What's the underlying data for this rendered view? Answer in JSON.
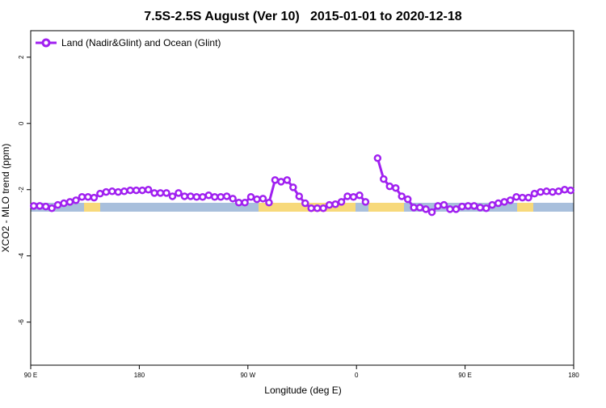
{
  "chart_data": {
    "type": "line",
    "title": "7.5S-2.5S August (Ver 10)   2015-01-01 to 2020-12-18",
    "xlabel": "Longitude (deg E)",
    "ylabel": "XCO2 - MLO trend (ppm)",
    "xlim": [
      90,
      540
    ],
    "ylim": [
      -7.3,
      2.8
    ],
    "xticks": [
      {
        "value": 90,
        "label": "90 E"
      },
      180,
      {
        "value": 270,
        "label": "90 W"
      },
      {
        "value": 360,
        "label": "0"
      },
      {
        "value": 450,
        "label": "90 E"
      },
      {
        "value": 540,
        "label": "180"
      }
    ],
    "yticks": [
      -6,
      -4,
      -2,
      0,
      2
    ],
    "legend": "top-left",
    "x": [
      92.5,
      97.5,
      102.5,
      107.5,
      112.5,
      117.5,
      122.5,
      127.5,
      132.5,
      137.5,
      142.5,
      147.5,
      152.5,
      157.5,
      162.5,
      167.5,
      172.5,
      177.5,
      182.5,
      187.5,
      192.5,
      197.5,
      202.5,
      207.5,
      212.5,
      217.5,
      222.5,
      227.5,
      232.5,
      237.5,
      242.5,
      247.5,
      252.5,
      257.5,
      262.5,
      267.5,
      272.5,
      277.5,
      282.5,
      287.5,
      292.5,
      297.5,
      302.5,
      307.5,
      312.5,
      317.5,
      322.5,
      327.5,
      332.5,
      337.5,
      342.5,
      347.5,
      352.5,
      357.5,
      362.5,
      367.5,
      372.5,
      377.5,
      382.5,
      387.5,
      392.5,
      397.5,
      402.5,
      407.5,
      412.5,
      417.5,
      422.5,
      427.5,
      432.5,
      437.5,
      442.5,
      447.5,
      452.5,
      457.5,
      462.5,
      467.5,
      472.5,
      477.5,
      482.5,
      487.5,
      492.5,
      497.5,
      502.5,
      507.5,
      512.5,
      517.5,
      522.5,
      527.5,
      532.5,
      537.5
    ],
    "series": [
      {
        "name": "Land (Nadir&Glint) and Ocean (Glint)",
        "color": "#a020f0",
        "values": [
          -2.49,
          -2.49,
          -2.51,
          -2.56,
          -2.46,
          -2.41,
          -2.37,
          -2.32,
          -2.22,
          -2.22,
          -2.24,
          -2.12,
          -2.07,
          -2.05,
          -2.07,
          -2.05,
          -2.02,
          -2.02,
          -2.02,
          -2.0,
          -2.1,
          -2.1,
          -2.1,
          -2.2,
          -2.1,
          -2.2,
          -2.2,
          -2.22,
          -2.22,
          -2.17,
          -2.22,
          -2.22,
          -2.2,
          -2.27,
          -2.39,
          -2.39,
          -2.22,
          -2.29,
          -2.27,
          -2.39,
          -1.71,
          -1.76,
          -1.71,
          -1.93,
          -2.2,
          -2.41,
          -2.56,
          -2.56,
          -2.56,
          -2.46,
          -2.44,
          -2.37,
          -2.2,
          -2.22,
          -2.17,
          -2.37,
          null,
          -1.05,
          -1.68,
          -1.9,
          -1.95,
          -2.2,
          -2.29,
          -2.54,
          -2.54,
          -2.59,
          -2.68,
          -2.49,
          -2.46,
          -2.59,
          -2.59,
          -2.51,
          -2.49,
          -2.49,
          -2.54,
          -2.56,
          -2.46,
          -2.41,
          -2.37,
          -2.32,
          -2.22,
          -2.24,
          -2.24,
          -2.12,
          -2.07,
          -2.05,
          -2.07,
          -2.05,
          -2.0,
          -2.02
        ]
      }
    ]
  }
}
